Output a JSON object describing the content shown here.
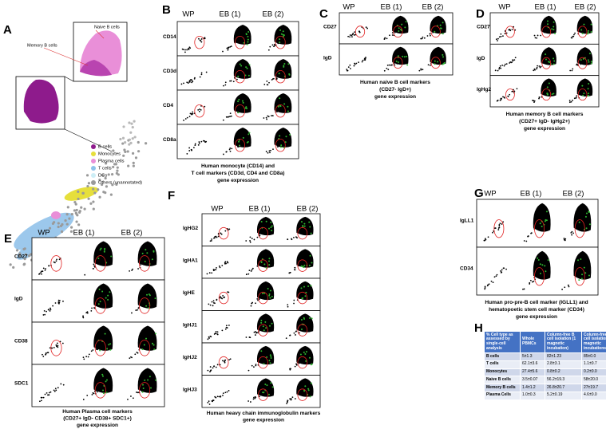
{
  "panel_a": {
    "letter": "A",
    "annotations": [
      "Memory B cells",
      "Naive B cells"
    ],
    "legend": [
      {
        "label": "B cells",
        "color": "#8e1b8c"
      },
      {
        "label": "Monocytes",
        "color": "#e6df3c"
      },
      {
        "label": "Plasma cells",
        "color": "#e98fd8"
      },
      {
        "label": "T cells",
        "color": "#8ec2ea"
      },
      {
        "label": "DCs",
        "color": "#cdeef6"
      },
      {
        "label": "Others (unannotated)",
        "color": "#9a9a9a"
      }
    ]
  },
  "panel_b": {
    "letter": "B",
    "columns": [
      "WP",
      "EB (1)",
      "EB (2)"
    ],
    "rows": [
      "CD14",
      "CD3d",
      "CD4",
      "CD8a"
    ],
    "caption": [
      "Human monocyte (CD14) and",
      "T cell markers (CD3d, CD4 and CD8a)",
      "gene expression"
    ]
  },
  "panel_c": {
    "letter": "C",
    "columns": [
      "WP",
      "EB (1)",
      "EB (2)"
    ],
    "rows": [
      "CD27",
      "IgD"
    ],
    "caption": [
      "Human naive B cell markers",
      "(CD27- IgD+)",
      "gene expression"
    ]
  },
  "panel_d": {
    "letter": "D",
    "columns": [
      "WP",
      "EB (1)",
      "EB (2)"
    ],
    "rows": [
      "CD27",
      "IgD",
      "IgHg2"
    ],
    "caption": [
      "Human memory B cell markers",
      "(CD27+ IgD- IgHg2+)",
      "gene expression"
    ]
  },
  "panel_e": {
    "letter": "E",
    "columns": [
      "WP",
      "EB (1)",
      "EB (2)"
    ],
    "rows": [
      "CD27",
      "IgD",
      "CD38",
      "SDC1"
    ],
    "caption": [
      "Human Plasma cell markers",
      "(CD27+ IgD- CD38+ SDC1+)",
      "gene expression"
    ]
  },
  "panel_f": {
    "letter": "F",
    "columns": [
      "WP",
      "EB (1)",
      "EB (2)"
    ],
    "rows": [
      "IgHG2",
      "IgHA1",
      "IgHE",
      "IgHJ1",
      "IgHJ2",
      "IgHJ3"
    ],
    "caption": [
      "Human heavy chain immunoglobulin markers",
      "gene expression"
    ]
  },
  "panel_g": {
    "letter": "G",
    "columns": [
      "WP",
      "EB (1)",
      "EB (2)"
    ],
    "rows": [
      "IgLL1",
      "CD34"
    ],
    "caption": [
      "Human pro-pre-B cell marker (IGLL1) and",
      "hematopoetic stem cell marker (CD34)",
      "gene expression"
    ]
  },
  "panel_h": {
    "letter": "H",
    "table": {
      "header": [
        "% Cell type as assessed by single-cell analysis",
        "Whole PBMCs",
        "Column-free B cell isolation (1 magnetic incubation)",
        "Column-free B cell isolation (2 magnetic incubations)"
      ],
      "rows": [
        [
          "B cells",
          "5±1.3",
          "82±1.23",
          "85±0.0"
        ],
        [
          "T cells",
          "62.1±3.6",
          "2.8±3.1",
          "1.1±0.7"
        ],
        [
          "Monocytes",
          "27.4±5.6",
          "0.8±0.2",
          "0.2±0.0"
        ],
        [
          "Naive B cells",
          "3.5±0.07",
          "56.2±19.3",
          "58±20.0"
        ],
        [
          "Memory B cells",
          "1.4±1.2",
          "26.8±20.7",
          "27±19.7"
        ],
        [
          "Plasma Cells",
          "1.0±0.3",
          "5.2±0.19",
          "4.6±0.0"
        ]
      ]
    }
  }
}
